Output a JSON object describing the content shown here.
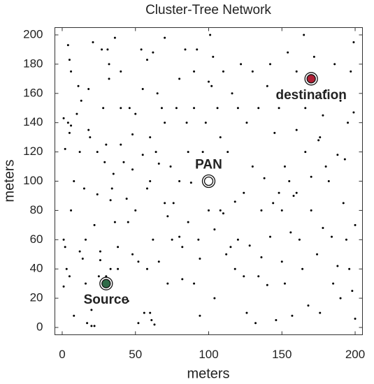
{
  "chart_data": {
    "type": "scatter",
    "title": "Cluster-Tree Network",
    "x_label": "meters",
    "y_label": "meters",
    "xlim": [
      -5,
      205
    ],
    "ylim": [
      -5,
      205
    ],
    "xticks": [
      0,
      50,
      100,
      150,
      200
    ],
    "yticks": [
      0,
      20,
      40,
      60,
      80,
      100,
      120,
      140,
      160,
      180,
      200
    ],
    "color": "#000000",
    "points": [
      [
        1,
        143
      ],
      [
        2,
        122
      ],
      [
        1,
        60
      ],
      [
        2,
        55
      ],
      [
        1,
        28
      ],
      [
        4,
        193
      ],
      [
        5,
        183
      ],
      [
        6,
        175
      ],
      [
        4,
        140
      ],
      [
        6,
        138
      ],
      [
        5,
        133
      ],
      [
        8,
        100
      ],
      [
        6,
        80
      ],
      [
        3,
        40
      ],
      [
        5,
        35
      ],
      [
        8,
        8
      ],
      [
        10,
        146
      ],
      [
        11,
        165
      ],
      [
        13,
        155
      ],
      [
        12,
        120
      ],
      [
        12,
        52
      ],
      [
        14,
        47
      ],
      [
        15,
        95
      ],
      [
        16,
        60
      ],
      [
        16,
        30
      ],
      [
        17,
        3
      ],
      [
        18,
        163
      ],
      [
        18,
        135
      ],
      [
        19,
        130
      ],
      [
        20,
        12
      ],
      [
        20,
        1
      ],
      [
        21,
        195
      ],
      [
        22,
        1
      ],
      [
        22,
        70
      ],
      [
        24,
        120
      ],
      [
        24,
        91
      ],
      [
        25,
        35
      ],
      [
        26,
        52
      ],
      [
        26,
        46
      ],
      [
        27,
        190
      ],
      [
        28,
        150
      ],
      [
        29,
        113
      ],
      [
        30,
        125
      ],
      [
        30,
        35
      ],
      [
        31,
        190
      ],
      [
        32,
        180
      ],
      [
        32,
        170
      ],
      [
        33,
        87
      ],
      [
        34,
        95
      ],
      [
        35,
        105
      ],
      [
        33,
        40
      ],
      [
        36,
        198
      ],
      [
        36,
        72
      ],
      [
        38,
        55
      ],
      [
        38,
        40
      ],
      [
        40,
        175
      ],
      [
        40,
        150
      ],
      [
        40,
        125
      ],
      [
        42,
        113
      ],
      [
        44,
        88
      ],
      [
        45,
        72
      ],
      [
        45,
        18
      ],
      [
        46,
        150
      ],
      [
        48,
        132
      ],
      [
        48,
        108
      ],
      [
        48,
        50
      ],
      [
        50,
        146
      ],
      [
        50,
        80
      ],
      [
        52,
        3
      ],
      [
        52,
        45
      ],
      [
        54,
        190
      ],
      [
        55,
        163
      ],
      [
        55,
        118
      ],
      [
        56,
        10
      ],
      [
        58,
        183
      ],
      [
        58,
        95
      ],
      [
        58,
        40
      ],
      [
        60,
        130
      ],
      [
        60,
        100
      ],
      [
        60,
        10
      ],
      [
        61,
        5
      ],
      [
        62,
        188
      ],
      [
        62,
        60
      ],
      [
        63,
        2
      ],
      [
        64,
        120
      ],
      [
        65,
        160
      ],
      [
        66,
        112
      ],
      [
        66,
        45
      ],
      [
        68,
        150
      ],
      [
        70,
        198
      ],
      [
        70,
        140
      ],
      [
        70,
        85
      ],
      [
        72,
        76
      ],
      [
        72,
        30
      ],
      [
        74,
        110
      ],
      [
        75,
        60
      ],
      [
        76,
        85
      ],
      [
        78,
        150
      ],
      [
        80,
        170
      ],
      [
        80,
        100
      ],
      [
        80,
        62
      ],
      [
        82,
        55
      ],
      [
        82,
        33
      ],
      [
        84,
        190
      ],
      [
        85,
        140
      ],
      [
        86,
        120
      ],
      [
        86,
        72
      ],
      [
        88,
        99
      ],
      [
        90,
        175
      ],
      [
        90,
        150
      ],
      [
        90,
        30
      ],
      [
        92,
        110
      ],
      [
        92,
        190
      ],
      [
        93,
        60
      ],
      [
        94,
        47
      ],
      [
        94,
        8
      ],
      [
        96,
        120
      ],
      [
        98,
        140
      ],
      [
        100,
        168
      ],
      [
        100,
        80
      ],
      [
        101,
        200
      ],
      [
        102,
        165
      ],
      [
        103,
        185
      ],
      [
        104,
        20
      ],
      [
        104,
        67
      ],
      [
        106,
        150
      ],
      [
        108,
        130
      ],
      [
        108,
        80
      ],
      [
        110,
        175
      ],
      [
        110,
        78
      ],
      [
        112,
        50
      ],
      [
        113,
        120
      ],
      [
        115,
        55
      ],
      [
        116,
        160
      ],
      [
        118,
        86
      ],
      [
        118,
        40
      ],
      [
        120,
        150
      ],
      [
        120,
        60
      ],
      [
        122,
        180
      ],
      [
        124,
        92
      ],
      [
        124,
        35
      ],
      [
        126,
        140
      ],
      [
        126,
        10
      ],
      [
        128,
        56
      ],
      [
        130,
        175
      ],
      [
        130,
        110
      ],
      [
        132,
        3
      ],
      [
        134,
        35
      ],
      [
        134,
        150
      ],
      [
        136,
        80
      ],
      [
        136,
        48
      ],
      [
        138,
        102
      ],
      [
        140,
        165
      ],
      [
        140,
        29
      ],
      [
        142,
        180
      ],
      [
        142,
        62
      ],
      [
        144,
        85
      ],
      [
        145,
        133
      ],
      [
        146,
        5
      ],
      [
        148,
        92
      ],
      [
        148,
        150
      ],
      [
        150,
        80
      ],
      [
        150,
        45
      ],
      [
        152,
        110
      ],
      [
        152,
        30
      ],
      [
        154,
        188
      ],
      [
        155,
        100
      ],
      [
        156,
        65
      ],
      [
        157,
        8
      ],
      [
        158,
        90
      ],
      [
        160,
        175
      ],
      [
        160,
        135
      ],
      [
        162,
        60
      ],
      [
        164,
        40
      ],
      [
        165,
        200
      ],
      [
        166,
        120
      ],
      [
        166,
        150
      ],
      [
        168,
        15
      ],
      [
        170,
        103
      ],
      [
        170,
        80
      ],
      [
        172,
        185
      ],
      [
        174,
        50
      ],
      [
        175,
        128
      ],
      [
        176,
        10
      ],
      [
        178,
        145
      ],
      [
        178,
        68
      ],
      [
        180,
        162
      ],
      [
        182,
        100
      ],
      [
        184,
        62
      ],
      [
        185,
        30
      ],
      [
        186,
        180
      ],
      [
        188,
        118
      ],
      [
        188,
        42
      ],
      [
        190,
        155
      ],
      [
        190,
        20
      ],
      [
        192,
        85
      ],
      [
        193,
        115
      ],
      [
        194,
        60
      ],
      [
        195,
        140
      ],
      [
        196,
        40
      ],
      [
        197,
        175
      ],
      [
        198,
        25
      ],
      [
        199,
        147
      ],
      [
        200,
        70
      ],
      [
        200,
        6
      ],
      [
        199,
        195
      ],
      [
        176,
        130
      ],
      [
        180,
        110
      ],
      [
        160,
        92
      ]
    ],
    "special_nodes": [
      {
        "label": "PAN",
        "x": 100,
        "y": 100,
        "color": "#ffffff",
        "label_position": "above"
      },
      {
        "label": "Source",
        "x": 30,
        "y": 30,
        "color": "#2f6b48",
        "label_position": "below"
      },
      {
        "label": "destination",
        "x": 170,
        "y": 170,
        "color": "#b01f35",
        "label_position": "below"
      }
    ]
  }
}
